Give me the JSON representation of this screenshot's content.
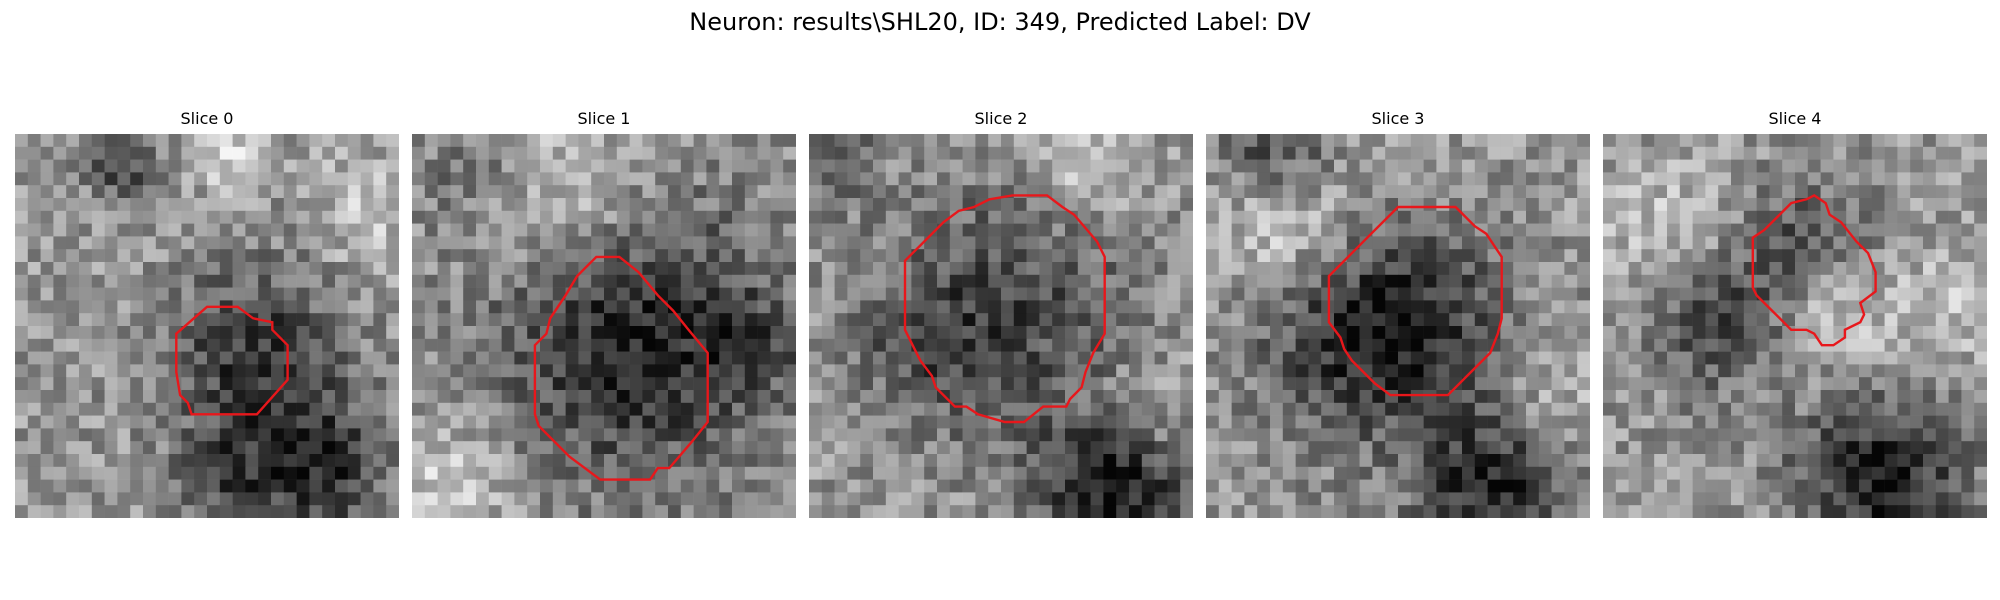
{
  "figure": {
    "title": "Neuron: results\\SHL20, ID: 349, Predicted Label: DV"
  },
  "colors": {
    "contour": "#e8171b"
  },
  "slices": [
    {
      "label": "Slice 0",
      "blobs": [
        [
          0.63,
          0.58,
          0.16,
          0.72
        ],
        [
          0.28,
          0.08,
          0.06,
          0.6
        ],
        [
          0.8,
          0.87,
          0.12,
          0.75
        ],
        [
          0.55,
          0.9,
          0.1,
          0.5
        ],
        [
          0.55,
          0.05,
          0.06,
          -0.5
        ],
        [
          0.92,
          0.2,
          0.1,
          -0.35
        ]
      ],
      "contour": [
        [
          0.5,
          0.45
        ],
        [
          0.58,
          0.45
        ],
        [
          0.62,
          0.48
        ],
        [
          0.67,
          0.49
        ],
        [
          0.67,
          0.51
        ],
        [
          0.71,
          0.55
        ],
        [
          0.71,
          0.58
        ],
        [
          0.71,
          0.64
        ],
        [
          0.63,
          0.73
        ],
        [
          0.57,
          0.73
        ],
        [
          0.46,
          0.73
        ],
        [
          0.45,
          0.7
        ],
        [
          0.43,
          0.68
        ],
        [
          0.42,
          0.62
        ],
        [
          0.42,
          0.52
        ]
      ]
    },
    {
      "label": "Slice 1",
      "blobs": [
        [
          0.58,
          0.53,
          0.26,
          0.85
        ],
        [
          0.15,
          0.1,
          0.1,
          0.3
        ],
        [
          0.4,
          0.17,
          0.16,
          -0.45
        ],
        [
          0.88,
          0.55,
          0.08,
          0.4
        ],
        [
          0.1,
          0.9,
          0.12,
          -0.4
        ]
      ],
      "contour": [
        [
          0.5,
          0.32
        ],
        [
          0.54,
          0.32
        ],
        [
          0.59,
          0.36
        ],
        [
          0.64,
          0.42
        ],
        [
          0.68,
          0.46
        ],
        [
          0.72,
          0.51
        ],
        [
          0.77,
          0.57
        ],
        [
          0.77,
          0.75
        ],
        [
          0.73,
          0.8
        ],
        [
          0.67,
          0.87
        ],
        [
          0.64,
          0.87
        ],
        [
          0.62,
          0.9
        ],
        [
          0.55,
          0.9
        ],
        [
          0.49,
          0.9
        ],
        [
          0.41,
          0.84
        ],
        [
          0.33,
          0.76
        ],
        [
          0.32,
          0.73
        ],
        [
          0.32,
          0.55
        ],
        [
          0.35,
          0.52
        ],
        [
          0.36,
          0.48
        ],
        [
          0.4,
          0.42
        ],
        [
          0.43,
          0.37
        ],
        [
          0.45,
          0.35
        ],
        [
          0.48,
          0.32
        ]
      ]
    },
    {
      "label": "Slice 2",
      "blobs": [
        [
          0.52,
          0.46,
          0.24,
          0.55
        ],
        [
          0.8,
          0.93,
          0.14,
          0.9
        ],
        [
          0.3,
          0.55,
          0.12,
          0.3
        ],
        [
          0.05,
          0.05,
          0.08,
          0.5
        ],
        [
          0.72,
          0.08,
          0.1,
          -0.4
        ],
        [
          0.88,
          0.72,
          0.1,
          -0.3
        ]
      ],
      "contour": [
        [
          0.47,
          0.17
        ],
        [
          0.53,
          0.16
        ],
        [
          0.62,
          0.16
        ],
        [
          0.66,
          0.19
        ],
        [
          0.69,
          0.21
        ],
        [
          0.75,
          0.28
        ],
        [
          0.77,
          0.32
        ],
        [
          0.77,
          0.52
        ],
        [
          0.74,
          0.57
        ],
        [
          0.72,
          0.62
        ],
        [
          0.71,
          0.66
        ],
        [
          0.68,
          0.69
        ],
        [
          0.67,
          0.71
        ],
        [
          0.61,
          0.71
        ],
        [
          0.56,
          0.75
        ],
        [
          0.51,
          0.75
        ],
        [
          0.44,
          0.73
        ],
        [
          0.41,
          0.71
        ],
        [
          0.38,
          0.71
        ],
        [
          0.33,
          0.66
        ],
        [
          0.32,
          0.63
        ],
        [
          0.29,
          0.59
        ],
        [
          0.28,
          0.57
        ],
        [
          0.25,
          0.51
        ],
        [
          0.25,
          0.33
        ],
        [
          0.28,
          0.3
        ],
        [
          0.29,
          0.29
        ],
        [
          0.35,
          0.23
        ],
        [
          0.39,
          0.2
        ],
        [
          0.43,
          0.19
        ]
      ]
    },
    {
      "label": "Slice 3",
      "blobs": [
        [
          0.4,
          0.55,
          0.18,
          0.75
        ],
        [
          0.6,
          0.45,
          0.16,
          0.4
        ],
        [
          0.75,
          0.92,
          0.14,
          0.85
        ],
        [
          0.18,
          0.05,
          0.1,
          0.6
        ],
        [
          0.2,
          0.22,
          0.12,
          -0.45
        ],
        [
          0.9,
          0.7,
          0.1,
          -0.25
        ]
      ],
      "contour": [
        [
          0.5,
          0.19
        ],
        [
          0.56,
          0.19
        ],
        [
          0.65,
          0.19
        ],
        [
          0.7,
          0.24
        ],
        [
          0.73,
          0.26
        ],
        [
          0.75,
          0.29
        ],
        [
          0.77,
          0.32
        ],
        [
          0.77,
          0.48
        ],
        [
          0.76,
          0.52
        ],
        [
          0.74,
          0.57
        ],
        [
          0.68,
          0.63
        ],
        [
          0.63,
          0.68
        ],
        [
          0.6,
          0.68
        ],
        [
          0.58,
          0.68
        ],
        [
          0.51,
          0.68
        ],
        [
          0.48,
          0.68
        ],
        [
          0.44,
          0.65
        ],
        [
          0.38,
          0.59
        ],
        [
          0.36,
          0.56
        ],
        [
          0.35,
          0.53
        ],
        [
          0.32,
          0.49
        ],
        [
          0.32,
          0.37
        ],
        [
          0.35,
          0.34
        ],
        [
          0.39,
          0.3
        ],
        [
          0.43,
          0.26
        ]
      ]
    },
    {
      "label": "Slice 4",
      "blobs": [
        [
          0.53,
          0.29,
          0.12,
          0.55
        ],
        [
          0.3,
          0.5,
          0.12,
          0.6
        ],
        [
          0.72,
          0.9,
          0.15,
          0.9
        ],
        [
          0.6,
          0.45,
          0.1,
          -0.45
        ],
        [
          0.15,
          0.25,
          0.12,
          -0.3
        ],
        [
          0.9,
          0.45,
          0.12,
          -0.3
        ]
      ],
      "contour": [
        [
          0.53,
          0.17
        ],
        [
          0.55,
          0.16
        ],
        [
          0.58,
          0.18
        ],
        [
          0.59,
          0.21
        ],
        [
          0.62,
          0.23
        ],
        [
          0.66,
          0.28
        ],
        [
          0.69,
          0.31
        ],
        [
          0.71,
          0.36
        ],
        [
          0.71,
          0.41
        ],
        [
          0.67,
          0.44
        ],
        [
          0.68,
          0.47
        ],
        [
          0.67,
          0.49
        ],
        [
          0.63,
          0.51
        ],
        [
          0.63,
          0.53
        ],
        [
          0.6,
          0.55
        ],
        [
          0.57,
          0.55
        ],
        [
          0.55,
          0.52
        ],
        [
          0.53,
          0.51
        ],
        [
          0.49,
          0.51
        ],
        [
          0.44,
          0.46
        ],
        [
          0.42,
          0.44
        ],
        [
          0.4,
          0.42
        ],
        [
          0.39,
          0.4
        ],
        [
          0.39,
          0.27
        ],
        [
          0.42,
          0.25
        ],
        [
          0.45,
          0.22
        ],
        [
          0.49,
          0.18
        ]
      ]
    }
  ]
}
